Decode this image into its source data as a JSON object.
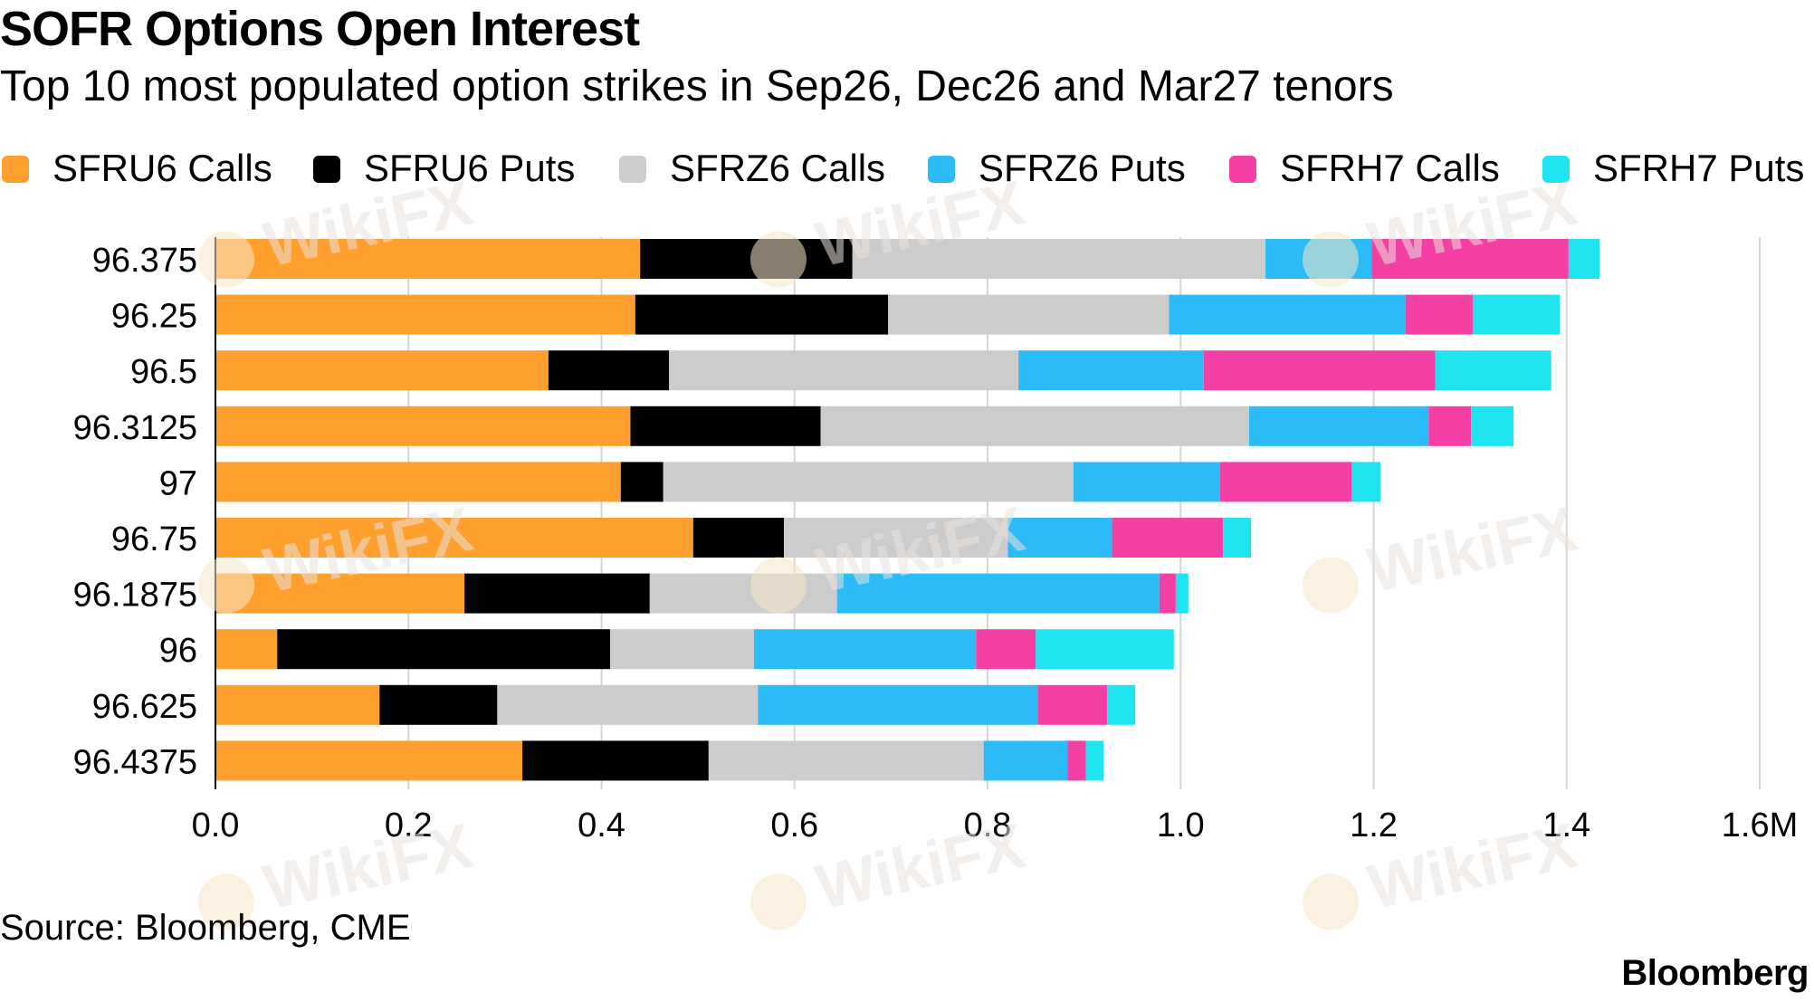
{
  "title": "SOFR Options Open Interest",
  "subtitle": "Top 10 most populated option strikes in Sep26, Dec26 and Mar27 tenors",
  "source": "Source: Bloomberg, CME",
  "brand": "Bloomberg",
  "watermark": "WikiFX",
  "chart_data": {
    "type": "bar",
    "orientation": "horizontal",
    "stacked": true,
    "title": "SOFR Options Open Interest",
    "subtitle": "Top 10 most populated option strikes in Sep26, Dec26 and Mar27 tenors",
    "categories": [
      "96.375",
      "96.25",
      "96.5",
      "96.3125",
      "97",
      "96.75",
      "96.1875",
      "96",
      "96.625",
      "96.4375"
    ],
    "x_ticks": [
      "0.0",
      "0.2",
      "0.4",
      "0.6",
      "0.8",
      "1.0",
      "1.2",
      "1.4",
      "1.6M"
    ],
    "xlim": [
      0,
      1.6
    ],
    "x_unit": "M",
    "grid": true,
    "legend_position": "top",
    "series": [
      {
        "name": "SFRU6 Calls",
        "color": "#ff9f2e",
        "values": [
          0.44,
          0.435,
          0.345,
          0.43,
          0.42,
          0.495,
          0.258,
          0.064,
          0.17,
          0.318
        ]
      },
      {
        "name": "SFRU6 Puts",
        "color": "#000000",
        "values": [
          0.22,
          0.262,
          0.125,
          0.197,
          0.044,
          0.094,
          0.192,
          0.345,
          0.122,
          0.193
        ]
      },
      {
        "name": "SFRZ6 Calls",
        "color": "#cccccc",
        "values": [
          0.428,
          0.291,
          0.362,
          0.444,
          0.425,
          0.232,
          0.194,
          0.149,
          0.27,
          0.285
        ]
      },
      {
        "name": "SFRZ6 Puts",
        "color": "#2bbcf7",
        "values": [
          0.11,
          0.245,
          0.192,
          0.186,
          0.152,
          0.108,
          0.334,
          0.23,
          0.29,
          0.087
        ]
      },
      {
        "name": "SFRH7 Calls",
        "color": "#f43fa5",
        "values": [
          0.204,
          0.07,
          0.24,
          0.044,
          0.136,
          0.115,
          0.017,
          0.062,
          0.072,
          0.019
        ]
      },
      {
        "name": "SFRH7 Puts",
        "color": "#1fe4f0",
        "values": [
          0.032,
          0.09,
          0.12,
          0.044,
          0.03,
          0.029,
          0.013,
          0.143,
          0.029,
          0.018
        ]
      }
    ]
  }
}
